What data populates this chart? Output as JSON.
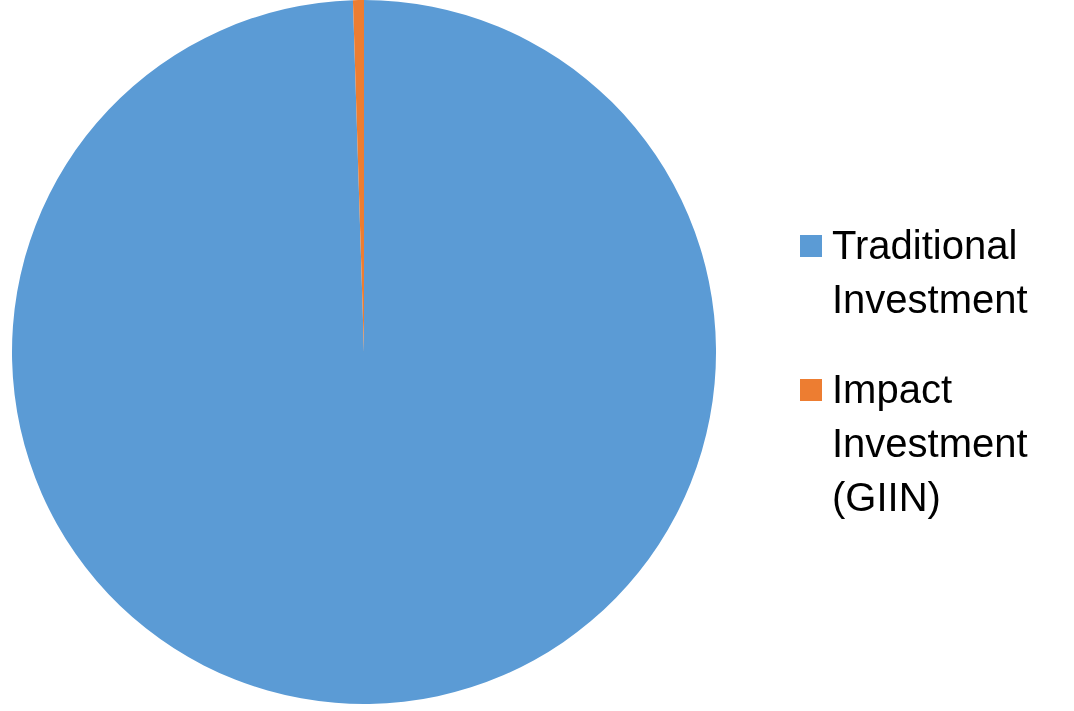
{
  "chart_data": {
    "type": "pie",
    "categories": [
      "Traditional Investment",
      "Impact Investment (GIIN)"
    ],
    "values": [
      99.5,
      0.5
    ],
    "colors": [
      "#5b9bd5",
      "#ed7d31"
    ],
    "legend": "right"
  }
}
